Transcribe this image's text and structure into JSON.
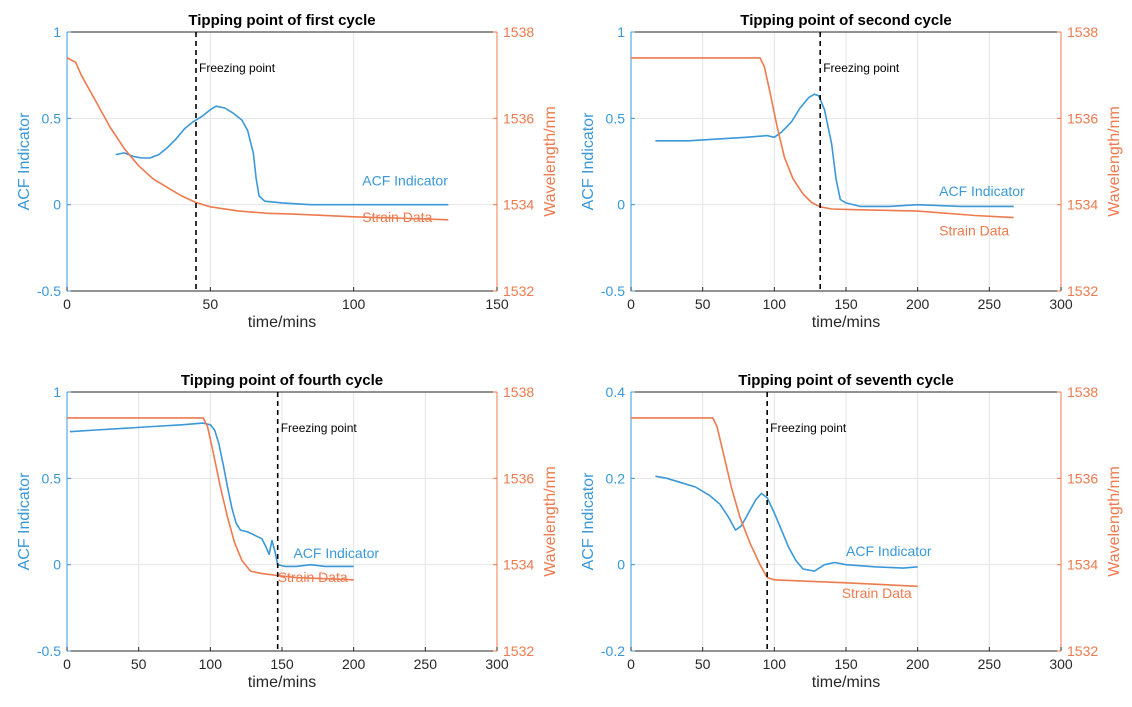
{
  "colors": {
    "acf": "#3a98d8",
    "strain": "#ee7a4e",
    "axis_left": "#3a98d8",
    "axis_right": "#ee7a4e",
    "grid": "#e4e4e4",
    "freeze": "#000000"
  },
  "chart_data": [
    {
      "type": "line",
      "title": "Tipping point of first cycle",
      "xlabel": "time/mins",
      "ylabel_left": "ACF Indicator",
      "ylabel_right": "Wavelength/nm",
      "xlim": [
        0,
        150
      ],
      "ylim_left": [
        -0.5,
        1
      ],
      "ylim_right": [
        1532,
        1538
      ],
      "xticks": [
        0,
        50,
        100,
        150
      ],
      "yticks_left": [
        -0.5,
        0,
        0.5,
        1
      ],
      "yticks_right": [
        1532,
        1534,
        1536,
        1538
      ],
      "grid": true,
      "freezing_point_x": 45,
      "freezing_point_label": "Freezing point",
      "series": [
        {
          "name": "ACF Indicator",
          "axis": "left",
          "points": [
            [
              17,
              0.29
            ],
            [
              20,
              0.3
            ],
            [
              23,
              0.28
            ],
            [
              26,
              0.27
            ],
            [
              29,
              0.27
            ],
            [
              32,
              0.29
            ],
            [
              35,
              0.33
            ],
            [
              38,
              0.38
            ],
            [
              41,
              0.44
            ],
            [
              44,
              0.48
            ],
            [
              47,
              0.51
            ],
            [
              50,
              0.55
            ],
            [
              52,
              0.57
            ],
            [
              55,
              0.56
            ],
            [
              58,
              0.53
            ],
            [
              61,
              0.49
            ],
            [
              63,
              0.43
            ],
            [
              65,
              0.3
            ],
            [
              66,
              0.15
            ],
            [
              67,
              0.05
            ],
            [
              69,
              0.02
            ],
            [
              75,
              0.01
            ],
            [
              85,
              0.0
            ],
            [
              100,
              0.0
            ],
            [
              120,
              0.0
            ],
            [
              133,
              0.0
            ]
          ],
          "label_at": [
            103,
            0.11
          ]
        },
        {
          "name": "Strain Data",
          "axis": "right",
          "points": [
            [
              0,
              1537.4
            ],
            [
              3,
              1537.3
            ],
            [
              5,
              1537.0
            ],
            [
              10,
              1536.4
            ],
            [
              15,
              1535.8
            ],
            [
              20,
              1535.3
            ],
            [
              25,
              1534.9
            ],
            [
              30,
              1534.6
            ],
            [
              35,
              1534.4
            ],
            [
              40,
              1534.2
            ],
            [
              45,
              1534.05
            ],
            [
              50,
              1533.95
            ],
            [
              60,
              1533.85
            ],
            [
              70,
              1533.8
            ],
            [
              80,
              1533.78
            ],
            [
              100,
              1533.72
            ],
            [
              120,
              1533.68
            ],
            [
              133,
              1533.65
            ]
          ],
          "label_at": [
            103,
            -0.1
          ]
        }
      ]
    },
    {
      "type": "line",
      "title": "Tipping point of second cycle",
      "xlabel": "time/mins",
      "ylabel_left": "ACF Indicator",
      "ylabel_right": "Wavelength/nm",
      "xlim": [
        0,
        300
      ],
      "ylim_left": [
        -0.5,
        1
      ],
      "ylim_right": [
        1532,
        1538
      ],
      "xticks": [
        0,
        50,
        100,
        150,
        200,
        250,
        300
      ],
      "yticks_left": [
        -0.5,
        0,
        0.5,
        1
      ],
      "yticks_right": [
        1532,
        1534,
        1536,
        1538
      ],
      "grid": true,
      "freezing_point_x": 132,
      "freezing_point_label": "Freezing point",
      "series": [
        {
          "name": "ACF Indicator",
          "axis": "left",
          "points": [
            [
              17,
              0.37
            ],
            [
              40,
              0.37
            ],
            [
              60,
              0.38
            ],
            [
              80,
              0.39
            ],
            [
              95,
              0.4
            ],
            [
              100,
              0.39
            ],
            [
              105,
              0.42
            ],
            [
              112,
              0.48
            ],
            [
              118,
              0.56
            ],
            [
              124,
              0.62
            ],
            [
              128,
              0.64
            ],
            [
              131,
              0.63
            ],
            [
              135,
              0.55
            ],
            [
              140,
              0.35
            ],
            [
              143,
              0.15
            ],
            [
              146,
              0.03
            ],
            [
              150,
              0.01
            ],
            [
              160,
              -0.01
            ],
            [
              180,
              -0.01
            ],
            [
              200,
              0.0
            ],
            [
              230,
              -0.01
            ],
            [
              267,
              -0.01
            ]
          ],
          "label_at": [
            215,
            0.05
          ]
        },
        {
          "name": "Strain Data",
          "axis": "right",
          "points": [
            [
              0,
              1537.4
            ],
            [
              90,
              1537.4
            ],
            [
              93,
              1537.2
            ],
            [
              97,
              1536.6
            ],
            [
              102,
              1535.8
            ],
            [
              107,
              1535.1
            ],
            [
              113,
              1534.6
            ],
            [
              120,
              1534.25
            ],
            [
              126,
              1534.05
            ],
            [
              132,
              1533.95
            ],
            [
              140,
              1533.9
            ],
            [
              160,
              1533.88
            ],
            [
              200,
              1533.85
            ],
            [
              240,
              1533.75
            ],
            [
              267,
              1533.7
            ]
          ],
          "label_at": [
            215,
            -0.18
          ]
        }
      ]
    },
    {
      "type": "line",
      "title": "Tipping point of fourth cycle",
      "xlabel": "time/mins",
      "ylabel_left": "ACF Indicator",
      "ylabel_right": "Wavelength/nm",
      "xlim": [
        0,
        300
      ],
      "ylim_left": [
        -0.5,
        1
      ],
      "ylim_right": [
        1532,
        1538
      ],
      "xticks": [
        0,
        50,
        100,
        150,
        200,
        250,
        300
      ],
      "yticks_left": [
        -0.5,
        0,
        0.5,
        1
      ],
      "yticks_right": [
        1532,
        1534,
        1536,
        1538
      ],
      "grid": true,
      "freezing_point_x": 147,
      "freezing_point_label": "Freezing point",
      "series": [
        {
          "name": "ACF Indicator",
          "axis": "left",
          "points": [
            [
              2,
              0.77
            ],
            [
              20,
              0.78
            ],
            [
              40,
              0.79
            ],
            [
              60,
              0.8
            ],
            [
              80,
              0.81
            ],
            [
              95,
              0.82
            ],
            [
              100,
              0.81
            ],
            [
              103,
              0.78
            ],
            [
              106,
              0.7
            ],
            [
              109,
              0.58
            ],
            [
              112,
              0.45
            ],
            [
              115,
              0.33
            ],
            [
              118,
              0.24
            ],
            [
              121,
              0.2
            ],
            [
              126,
              0.19
            ],
            [
              131,
              0.17
            ],
            [
              136,
              0.15
            ],
            [
              139,
              0.1
            ],
            [
              141,
              0.06
            ],
            [
              143,
              0.14
            ],
            [
              145,
              0.08
            ],
            [
              147,
              0.0
            ],
            [
              152,
              -0.01
            ],
            [
              160,
              -0.01
            ],
            [
              170,
              0.0
            ],
            [
              180,
              -0.01
            ],
            [
              190,
              -0.01
            ],
            [
              200,
              -0.01
            ]
          ],
          "label_at": [
            158,
            0.04
          ]
        },
        {
          "name": "Strain Data",
          "axis": "right",
          "points": [
            [
              0,
              1537.4
            ],
            [
              95,
              1537.4
            ],
            [
              98,
              1537.2
            ],
            [
              102,
              1536.6
            ],
            [
              107,
              1535.8
            ],
            [
              112,
              1535.1
            ],
            [
              117,
              1534.5
            ],
            [
              122,
              1534.1
            ],
            [
              128,
              1533.85
            ],
            [
              135,
              1533.8
            ],
            [
              147,
              1533.75
            ],
            [
              160,
              1533.7
            ],
            [
              200,
              1533.65
            ]
          ],
          "label_at": [
            147,
            -0.1
          ]
        }
      ]
    },
    {
      "type": "line",
      "title": "Tipping point of seventh cycle",
      "xlabel": "time/mins",
      "ylabel_left": "ACF Indicator",
      "ylabel_right": "Wavelength/nm",
      "xlim": [
        0,
        300
      ],
      "ylim_left": [
        -0.2,
        0.4
      ],
      "ylim_right": [
        1532,
        1538
      ],
      "xticks": [
        0,
        50,
        100,
        150,
        200,
        250,
        300
      ],
      "yticks_left": [
        -0.2,
        0,
        0.2,
        0.4
      ],
      "yticks_right": [
        1532,
        1534,
        1536,
        1538
      ],
      "grid": true,
      "freezing_point_x": 95,
      "freezing_point_label": "Freezing point",
      "series": [
        {
          "name": "ACF Indicator",
          "axis": "left",
          "points": [
            [
              17,
              0.205
            ],
            [
              25,
              0.2
            ],
            [
              35,
              0.19
            ],
            [
              45,
              0.18
            ],
            [
              55,
              0.16
            ],
            [
              62,
              0.14
            ],
            [
              68,
              0.11
            ],
            [
              73,
              0.08
            ],
            [
              77,
              0.09
            ],
            [
              82,
              0.12
            ],
            [
              87,
              0.15
            ],
            [
              91,
              0.165
            ],
            [
              95,
              0.155
            ],
            [
              100,
              0.12
            ],
            [
              105,
              0.08
            ],
            [
              110,
              0.04
            ],
            [
              115,
              0.01
            ],
            [
              120,
              -0.01
            ],
            [
              128,
              -0.015
            ],
            [
              135,
              0.0
            ],
            [
              142,
              0.005
            ],
            [
              150,
              0.0
            ],
            [
              170,
              -0.005
            ],
            [
              190,
              -0.008
            ],
            [
              200,
              -0.005
            ]
          ],
          "label_at": [
            150,
            0.02
          ]
        },
        {
          "name": "Strain Data",
          "axis": "right",
          "points": [
            [
              0,
              1537.4
            ],
            [
              57,
              1537.4
            ],
            [
              60,
              1537.2
            ],
            [
              65,
              1536.5
            ],
            [
              70,
              1535.8
            ],
            [
              76,
              1535.1
            ],
            [
              83,
              1534.5
            ],
            [
              90,
              1534.0
            ],
            [
              95,
              1533.7
            ],
            [
              100,
              1533.65
            ],
            [
              120,
              1533.62
            ],
            [
              150,
              1533.58
            ],
            [
              200,
              1533.5
            ]
          ],
          "label_at": [
            147,
            -0.077
          ]
        }
      ]
    }
  ]
}
